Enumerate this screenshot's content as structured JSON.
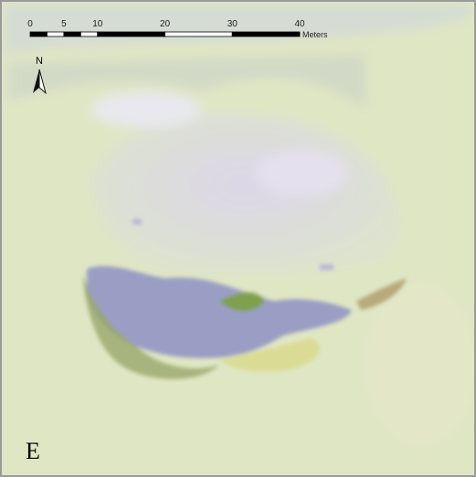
{
  "scale_bar": {
    "ticks": [
      0,
      5,
      10,
      20,
      30,
      40
    ],
    "unit": "Meters"
  },
  "north_label": "N",
  "panel_label": "E"
}
